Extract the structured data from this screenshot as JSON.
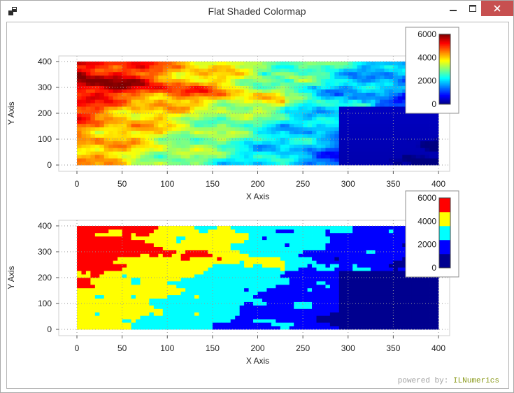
{
  "window": {
    "title": "Flat Shaded Colormap",
    "controls": {
      "minimize": "minimize-icon",
      "maximize": "maximize-icon",
      "close": "close-icon"
    }
  },
  "footer": {
    "powered_prefix": "powered by:",
    "powered_brand": "ILNumerics"
  },
  "colors": {
    "close_button": "#c75050",
    "brand": "#8a9a1a"
  },
  "chart_data": [
    {
      "type": "heatmap",
      "title": "",
      "xlabel": "X Axis",
      "ylabel": "Y Axis",
      "xlim": [
        0,
        400
      ],
      "ylim": [
        0,
        400
      ],
      "xticks": [
        "0",
        "50",
        "100",
        "150",
        "200",
        "250",
        "300",
        "350",
        "400"
      ],
      "yticks": [
        "0",
        "100",
        "200",
        "300",
        "400"
      ],
      "grid": true,
      "colormap": "jet",
      "shading": "interpolated",
      "colorbar": {
        "placement": "top-right",
        "ticks": [
          "0",
          "2000",
          "4000",
          "6000"
        ],
        "range": [
          0,
          6000
        ]
      }
    },
    {
      "type": "heatmap",
      "title": "",
      "xlabel": "X Axis",
      "ylabel": "Y Axis",
      "xlim": [
        0,
        400
      ],
      "ylim": [
        0,
        400
      ],
      "xticks": [
        "0",
        "50",
        "100",
        "150",
        "200",
        "250",
        "300",
        "350",
        "400"
      ],
      "yticks": [
        "0",
        "100",
        "200",
        "300",
        "400"
      ],
      "grid": true,
      "colormap": "jet",
      "shading": "flat",
      "color_levels": [
        "#00008f",
        "#0000ff",
        "#00ffff",
        "#ffff00",
        "#ff0000"
      ],
      "colorbar": {
        "placement": "top-right",
        "ticks": [
          "0",
          "2000",
          "4000",
          "6000"
        ],
        "range": [
          0,
          6000
        ]
      }
    }
  ]
}
